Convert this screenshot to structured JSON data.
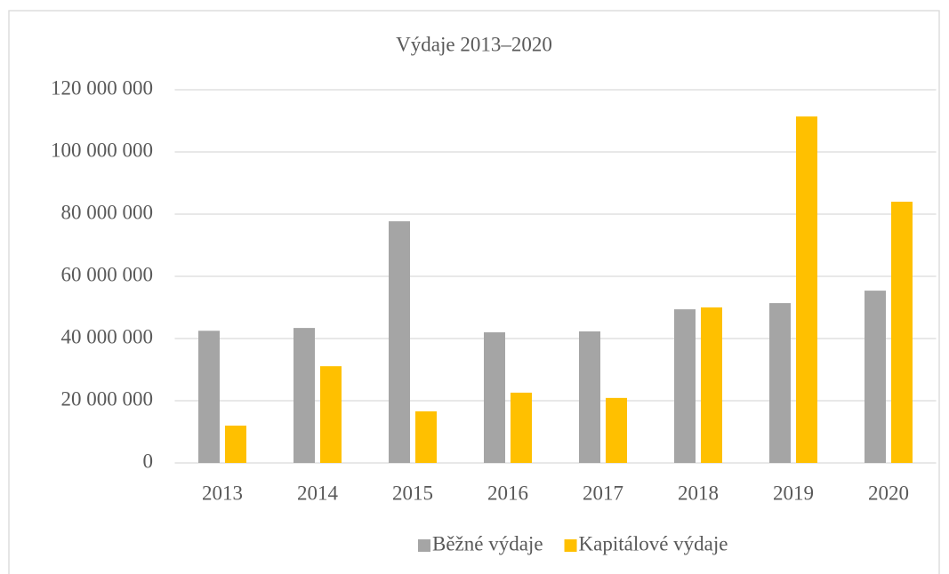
{
  "chart_data": {
    "type": "bar",
    "title": "Výdaje 2013–2020",
    "categories": [
      "2013",
      "2014",
      "2015",
      "2016",
      "2017",
      "2018",
      "2019",
      "2020"
    ],
    "series": [
      {
        "name": "Běžné výdaje",
        "color": "#a5a5a5",
        "values": [
          42500000,
          43400000,
          77700000,
          42000000,
          42300000,
          49400000,
          51400000,
          55400000
        ]
      },
      {
        "name": "Kapitálové výdaje",
        "color": "#ffc000",
        "values": [
          12000000,
          31100000,
          16600000,
          22600000,
          20900000,
          50000000,
          111400000,
          84000000
        ]
      }
    ],
    "ylim": [
      0,
      120000000
    ],
    "yticks": [
      0,
      {
        "value": 20000000,
        "label": "20 000 000"
      },
      {
        "value": 40000000,
        "label": "40 000 000"
      },
      {
        "value": 60000000,
        "label": "60 000 000"
      },
      {
        "value": 80000000,
        "label": "80 000 000"
      },
      {
        "value": 100000000,
        "label": "100 000 000"
      },
      {
        "value": 120000000,
        "label": "120 000 000"
      }
    ],
    "grid": true,
    "legend": "bottom"
  }
}
